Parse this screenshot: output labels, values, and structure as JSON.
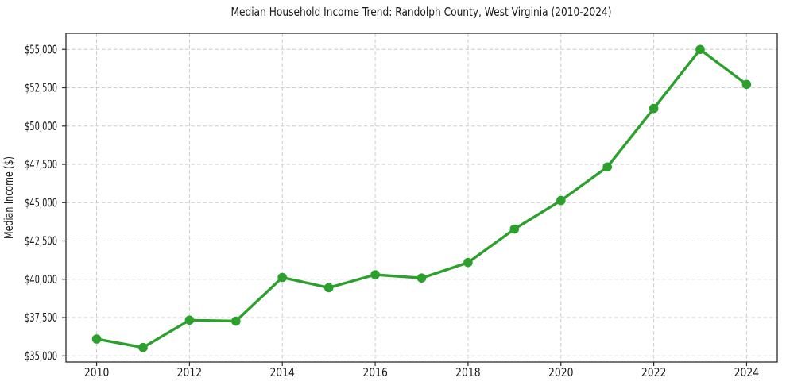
{
  "chart_data": {
    "type": "line",
    "title": "Median Household Income Trend: Randolph County, West Virginia (2010-2024)",
    "xlabel": "",
    "ylabel": "Median Income ($)",
    "x": [
      2010,
      2011,
      2012,
      2013,
      2014,
      2015,
      2016,
      2017,
      2018,
      2019,
      2020,
      2021,
      2022,
      2023,
      2024
    ],
    "series": [
      {
        "name": "Median Household Income",
        "values": [
          36100,
          35550,
          37330,
          37270,
          40120,
          39450,
          40300,
          40080,
          41090,
          43280,
          45140,
          47330,
          51150,
          55000,
          52720
        ]
      }
    ],
    "x_ticks": [
      2010,
      2012,
      2014,
      2016,
      2018,
      2020,
      2022,
      2024
    ],
    "x_tick_labels": [
      "2010",
      "2012",
      "2014",
      "2016",
      "2018",
      "2020",
      "2022",
      "2024"
    ],
    "y_ticks": [
      35000,
      37500,
      40000,
      42500,
      45000,
      47500,
      50000,
      52500,
      55000
    ],
    "y_tick_labels": [
      "$35,000",
      "$37,500",
      "$40,000",
      "$42,500",
      "$45,000",
      "$47,500",
      "$50,000",
      "$52,500",
      "$55,000"
    ],
    "xlim": [
      2009.34,
      2024.66
    ],
    "ylim": [
      34600,
      56050
    ],
    "grid": true,
    "grid_style": "dashed",
    "legend": null,
    "colors": {
      "line": "#2ca02c",
      "marker": "#2ca02c",
      "grid": "#cccccc",
      "spine": "#2b2b2b",
      "text": "#1a1a1a"
    }
  }
}
